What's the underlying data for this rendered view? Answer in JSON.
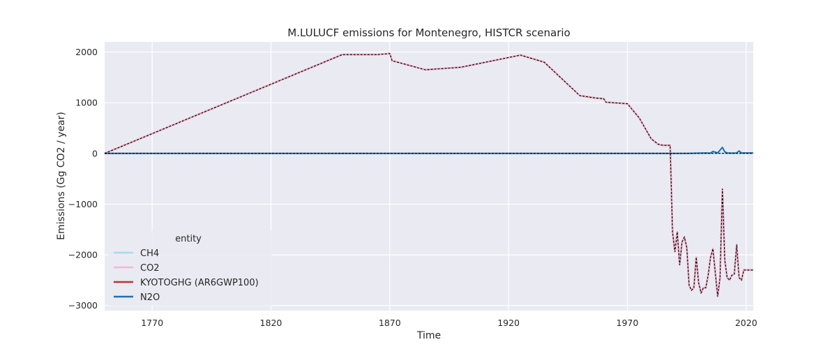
{
  "chart_data": {
    "type": "line",
    "title": "M.LULUCF emissions for Montenegro, HISTCR scenario",
    "xlabel": "Time",
    "ylabel": "Emissions (Gg CO2 / year)",
    "xlim": [
      1750,
      2023
    ],
    "ylim": [
      -3100,
      2200
    ],
    "xticks": [
      1770,
      1820,
      1870,
      1920,
      1970,
      2020
    ],
    "yticks": [
      2000,
      1000,
      0,
      -1000,
      -2000,
      -3000
    ],
    "ytick_labels": [
      "2000",
      "1000",
      "0",
      "−1000",
      "−2000",
      "−3000"
    ],
    "grid": true,
    "legend": {
      "title": "entity",
      "placement": "lower-left",
      "entries": [
        "CH4",
        "CO2",
        "KYOTOGHG (AR6GWP100)",
        "N2O"
      ]
    },
    "series": [
      {
        "name": "CH4",
        "color": "#a6dbe5",
        "x": [
          1750,
          1990,
          1995,
          2000,
          2005,
          2010,
          2013,
          2015,
          2020,
          2023
        ],
        "y": [
          0,
          0,
          1,
          1,
          1,
          1,
          1,
          1,
          1,
          1
        ]
      },
      {
        "name": "CO2",
        "color": "#f4b6d2",
        "x": [
          1750,
          1850,
          1865,
          1870,
          1871,
          1885,
          1900,
          1925,
          1935,
          1950,
          1957,
          1960,
          1961,
          1970,
          1975,
          1980,
          1983,
          1985,
          1988,
          1989,
          1990,
          1991,
          1992,
          1993,
          1994,
          1995,
          1996,
          1997,
          1998,
          1999,
          2000,
          2001,
          2002,
          2003,
          2004,
          2005,
          2006,
          2007,
          2008,
          2009,
          2010,
          2011,
          2012,
          2013,
          2014,
          2015,
          2016,
          2017,
          2018,
          2019,
          2020,
          2021,
          2022,
          2023
        ],
        "y": [
          0,
          1950,
          1950,
          1970,
          1830,
          1650,
          1700,
          1940,
          1800,
          1140,
          1090,
          1080,
          1010,
          980,
          700,
          290,
          180,
          160,
          160,
          -1550,
          -1940,
          -1550,
          -2200,
          -1750,
          -1650,
          -1850,
          -2600,
          -2700,
          -2650,
          -2050,
          -2550,
          -2750,
          -2650,
          -2650,
          -2400,
          -2050,
          -1880,
          -2350,
          -2820,
          -2450,
          -700,
          -2100,
          -2450,
          -2500,
          -2400,
          -2380,
          -1800,
          -2450,
          -2500,
          -2300,
          -2300,
          -2300,
          -2300,
          -2300
        ]
      },
      {
        "name": "KYOTOGHG (AR6GWP100)",
        "color": "#c62e2e",
        "x": [
          1750,
          1850,
          1865,
          1870,
          1871,
          1885,
          1900,
          1925,
          1935,
          1950,
          1957,
          1960,
          1961,
          1970,
          1975,
          1980,
          1983,
          1985,
          1988,
          1989,
          1990,
          1991,
          1992,
          1993,
          1994,
          1995,
          1996,
          1997,
          1998,
          1999,
          2000,
          2001,
          2002,
          2003,
          2004,
          2005,
          2006,
          2007,
          2008,
          2009,
          2010,
          2011,
          2012,
          2013,
          2014,
          2015,
          2016,
          2017,
          2018,
          2019,
          2020,
          2021,
          2022,
          2023
        ],
        "y": [
          0,
          1950,
          1950,
          1970,
          1830,
          1650,
          1700,
          1940,
          1800,
          1140,
          1090,
          1080,
          1010,
          980,
          700,
          290,
          180,
          160,
          160,
          -1550,
          -1940,
          -1550,
          -2200,
          -1750,
          -1650,
          -1850,
          -2600,
          -2700,
          -2650,
          -2050,
          -2550,
          -2750,
          -2650,
          -2650,
          -2400,
          -2050,
          -1880,
          -2350,
          -2820,
          -2450,
          -700,
          -2100,
          -2450,
          -2500,
          -2400,
          -2380,
          -1800,
          -2450,
          -2500,
          -2300,
          -2300,
          -2300,
          -2300,
          -2300
        ]
      },
      {
        "name": "N2O",
        "color": "#1f6fb2",
        "x": [
          1750,
          1995,
          2000,
          2003,
          2005,
          2006,
          2008,
          2010,
          2011,
          2012,
          2014,
          2016,
          2017,
          2018,
          2020,
          2023
        ],
        "y": [
          0,
          0,
          5,
          10,
          5,
          40,
          10,
          120,
          30,
          10,
          5,
          10,
          50,
          10,
          10,
          10
        ]
      }
    ]
  }
}
